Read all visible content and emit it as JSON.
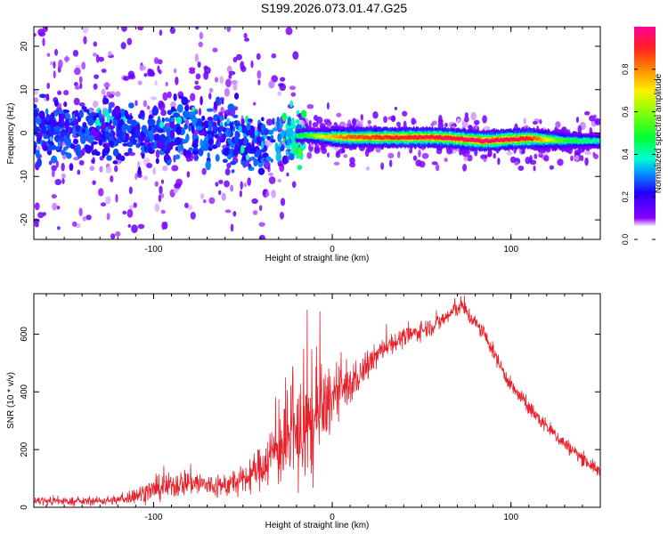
{
  "title": "S199.2026.073.01.47.G25",
  "chart_data": [
    {
      "type": "heatmap",
      "xlabel": "Height of straight line (km)",
      "ylabel": "Frequency (Hz)",
      "xlim": [
        -167,
        150
      ],
      "ylim": [
        -24.5,
        24.5
      ],
      "xticks": [
        -100,
        0,
        100
      ],
      "yticks": [
        -20,
        -10,
        0,
        10,
        20
      ],
      "ridge": [
        {
          "x": -165,
          "f": 0.5,
          "a": 0.3
        },
        {
          "x": -140,
          "f": 0.0,
          "a": 0.3
        },
        {
          "x": -120,
          "f": 0.5,
          "a": 0.28
        },
        {
          "x": -100,
          "f": -0.5,
          "a": 0.3
        },
        {
          "x": -80,
          "f": 1.0,
          "a": 0.32
        },
        {
          "x": -60,
          "f": 0.0,
          "a": 0.3
        },
        {
          "x": -45,
          "f": -2.5,
          "a": 0.3
        },
        {
          "x": -35,
          "f": -1.5,
          "a": 0.32
        },
        {
          "x": -25,
          "f": -1.0,
          "a": 0.4
        },
        {
          "x": -15,
          "f": -0.5,
          "a": 0.5
        },
        {
          "x": -5,
          "f": -0.8,
          "a": 0.7
        },
        {
          "x": 10,
          "f": -1.0,
          "a": 0.85
        },
        {
          "x": 30,
          "f": -1.0,
          "a": 0.9
        },
        {
          "x": 60,
          "f": -1.0,
          "a": 0.93
        },
        {
          "x": 85,
          "f": -1.8,
          "a": 0.97
        },
        {
          "x": 110,
          "f": -1.2,
          "a": 0.92
        },
        {
          "x": 130,
          "f": -1.8,
          "a": 0.5
        },
        {
          "x": 150,
          "f": -1.8,
          "a": 0.4
        }
      ],
      "colorbar": {
        "label": "Normalized spectral amplitude",
        "range": [
          0,
          1
        ],
        "ticks": [
          0.0,
          0.2,
          0.4,
          0.6,
          0.8
        ]
      }
    },
    {
      "type": "line",
      "xlabel": "Height of straight line (km)",
      "ylabel": "SNR (10 * v/v)",
      "xlim": [
        -167,
        150
      ],
      "ylim": [
        0,
        740
      ],
      "xticks": [
        -100,
        0,
        100
      ],
      "yticks": [
        0,
        200,
        400,
        600
      ],
      "color": "#e8202a",
      "envelope": [
        {
          "x": -167,
          "y": 22,
          "n": 18
        },
        {
          "x": -140,
          "y": 20,
          "n": 14
        },
        {
          "x": -120,
          "y": 25,
          "n": 18
        },
        {
          "x": -100,
          "y": 60,
          "n": 45
        },
        {
          "x": -80,
          "y": 90,
          "n": 55
        },
        {
          "x": -65,
          "y": 70,
          "n": 45
        },
        {
          "x": -50,
          "y": 90,
          "n": 55
        },
        {
          "x": -40,
          "y": 140,
          "n": 80
        },
        {
          "x": -30,
          "y": 210,
          "n": 150
        },
        {
          "x": -20,
          "y": 240,
          "n": 220
        },
        {
          "x": -10,
          "y": 280,
          "n": 230
        },
        {
          "x": 0,
          "y": 380,
          "n": 110
        },
        {
          "x": 10,
          "y": 420,
          "n": 70
        },
        {
          "x": 20,
          "y": 490,
          "n": 55
        },
        {
          "x": 30,
          "y": 560,
          "n": 40
        },
        {
          "x": 45,
          "y": 600,
          "n": 35
        },
        {
          "x": 60,
          "y": 640,
          "n": 35
        },
        {
          "x": 72,
          "y": 700,
          "n": 35
        },
        {
          "x": 85,
          "y": 600,
          "n": 30
        },
        {
          "x": 100,
          "y": 420,
          "n": 30
        },
        {
          "x": 115,
          "y": 310,
          "n": 30
        },
        {
          "x": 130,
          "y": 220,
          "n": 28
        },
        {
          "x": 150,
          "y": 120,
          "n": 25
        }
      ],
      "spikes": [
        {
          "x": -22,
          "y": 470
        },
        {
          "x": -16,
          "y": 560
        },
        {
          "x": -14,
          "y": 690
        },
        {
          "x": -9,
          "y": 520
        },
        {
          "x": -7,
          "y": 690
        },
        {
          "x": 5,
          "y": 560
        },
        {
          "x": 12,
          "y": 520
        }
      ]
    }
  ]
}
